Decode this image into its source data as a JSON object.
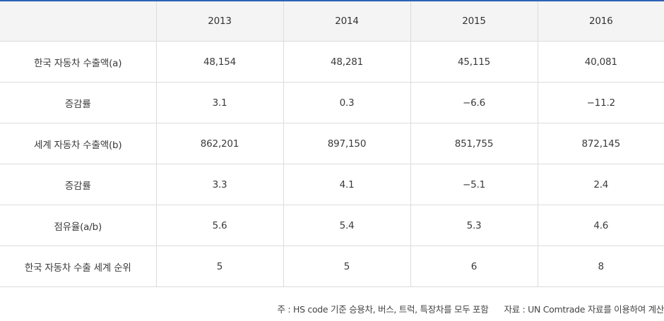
{
  "table": {
    "corner": "",
    "columns": [
      "2013",
      "2014",
      "2015",
      "2016"
    ],
    "rows": [
      {
        "label": "한국 자동차 수출액(a)",
        "values": [
          "48,154",
          "48,281",
          "45,115",
          "40,081"
        ]
      },
      {
        "label": "증감률",
        "values": [
          "3.1",
          "0.3",
          "−6.6",
          "−11.2"
        ]
      },
      {
        "label": "세계 자동차 수출액(b)",
        "values": [
          "862,201",
          "897,150",
          "851,755",
          "872,145"
        ]
      },
      {
        "label": "증감률",
        "values": [
          "3.3",
          "4.1",
          "−5.1",
          "2.4"
        ]
      },
      {
        "label": "점유율(a/b)",
        "values": [
          "5.6",
          "5.4",
          "5.3",
          "4.6"
        ]
      },
      {
        "label": "한국 자동차 수출 세계 순위",
        "values": [
          "5",
          "5",
          "6",
          "8"
        ]
      }
    ]
  },
  "footnote": {
    "note": "주 : HS code 기준 승용차, 버스, 트럭, 특장차를 모두 포함",
    "source": "자료 : UN Comtrade 자료를 이용하여 계산"
  }
}
